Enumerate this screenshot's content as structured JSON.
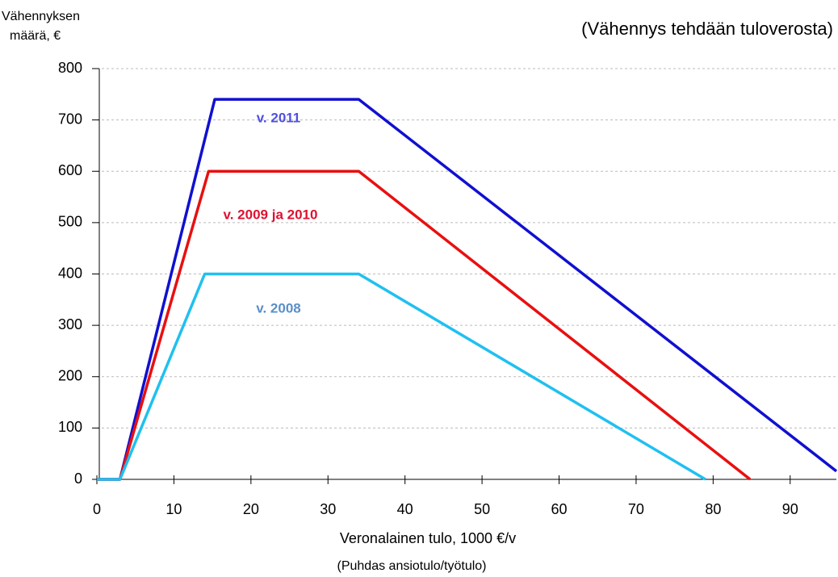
{
  "chart_data": {
    "type": "line",
    "y_label_lines": [
      "Vähennyksen",
      "määrä, €"
    ],
    "subtitle": "(Vähennys tehdään tuloverosta)",
    "x_label": "Veronalainen tulo, 1000 €/v",
    "x_label_note": "(Puhdas ansiotulo/työtulo)",
    "series": [
      {
        "name": "v. 2011",
        "color": "#1010d0",
        "label_color": "#5050e0",
        "x": [
          0,
          3,
          15.3,
          34,
          96
        ],
        "values": [
          0,
          0,
          740,
          740,
          16
        ]
      },
      {
        "name": "v. 2009 ja 2010",
        "color": "#e81010",
        "label_color": "#e01030",
        "x": [
          0,
          3,
          14.5,
          34,
          84.8
        ],
        "values": [
          0,
          0,
          600,
          600,
          0
        ]
      },
      {
        "name": "v. 2008",
        "color": "#20c0f0",
        "label_color": "#5b8fc8",
        "x": [
          0,
          3,
          14,
          34,
          79
        ],
        "values": [
          0,
          0,
          400,
          400,
          0
        ]
      }
    ],
    "xlim": [
      0,
      96
    ],
    "xticks": [
      0,
      10,
      20,
      30,
      40,
      50,
      60,
      70,
      80,
      90
    ],
    "ylim": [
      0,
      800
    ],
    "yticks": [
      0,
      100,
      200,
      300,
      400,
      500,
      600,
      700,
      800
    ],
    "grid": true
  }
}
